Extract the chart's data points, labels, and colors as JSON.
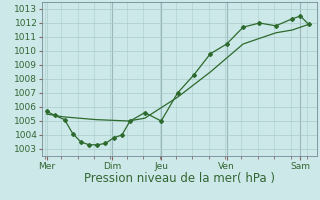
{
  "bg_color": "#cce8e8",
  "grid_color": "#aacccc",
  "line_color": "#2d6a2d",
  "vline_color": "#667788",
  "ylim": [
    1002.5,
    1013.5
  ],
  "yticks": [
    1003,
    1004,
    1005,
    1006,
    1007,
    1008,
    1009,
    1010,
    1011,
    1012,
    1013
  ],
  "xlim": [
    -0.1,
    8.3
  ],
  "day_ticks": [
    0.05,
    2.05,
    3.55,
    5.55,
    7.8
  ],
  "day_labels": [
    "Mer",
    "Dim",
    "Jeu",
    "Ven",
    "Sam"
  ],
  "vline_x": [
    2.05,
    3.55,
    5.55,
    7.8
  ],
  "series1_x": [
    0.05,
    0.3,
    0.6,
    0.85,
    1.1,
    1.35,
    1.6,
    1.85,
    2.1,
    2.35,
    2.6,
    3.05,
    3.55,
    4.05,
    4.55,
    5.05,
    5.55,
    6.05,
    6.55,
    7.05,
    7.55,
    7.8,
    8.05
  ],
  "series1_y": [
    1005.7,
    1005.4,
    1005.1,
    1004.1,
    1003.5,
    1003.3,
    1003.3,
    1003.4,
    1003.8,
    1004.0,
    1005.0,
    1005.6,
    1005.0,
    1007.0,
    1008.3,
    1009.8,
    1010.5,
    1011.7,
    1012.0,
    1011.8,
    1012.3,
    1012.5,
    1011.9
  ],
  "series2_x": [
    0.05,
    0.55,
    1.05,
    1.55,
    2.05,
    2.55,
    3.05,
    4.05,
    5.05,
    6.05,
    7.05,
    7.55,
    8.05
  ],
  "series2_y": [
    1005.5,
    1005.3,
    1005.2,
    1005.1,
    1005.05,
    1005.0,
    1005.2,
    1006.7,
    1008.5,
    1010.5,
    1011.3,
    1011.5,
    1011.9
  ],
  "xlabel": "Pression niveau de la mer( hPa )",
  "xlabel_fontsize": 8.5,
  "tick_fontsize": 6.5,
  "tick_color": "#336633",
  "label_color": "#336633"
}
